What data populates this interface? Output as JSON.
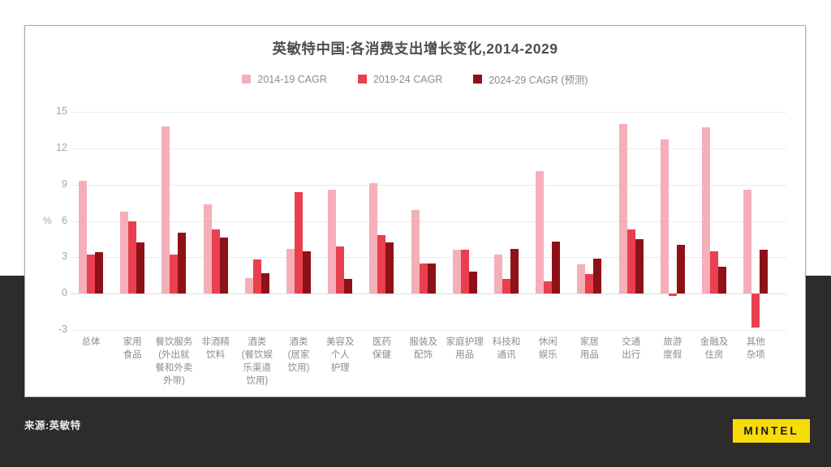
{
  "slide": {
    "source": "来源:英敏特",
    "logo_text": "MINTEL",
    "logo_color": "#f8db0b"
  },
  "legend": [
    {
      "label": "2014-19 CAGR",
      "color": "#f4afb9"
    },
    {
      "label": "2019-24 CAGR",
      "color": "#e8404e"
    },
    {
      "label": "2024-29 CAGR (预测)",
      "color": "#8e1117"
    }
  ],
  "chart_data": {
    "type": "bar",
    "title": "英敏特中国:各消费支出增长变化,2014-2029",
    "xlabel": "",
    "ylabel": "%",
    "ylim": [
      -3,
      15
    ],
    "yticks": [
      15,
      12,
      9,
      6,
      3,
      0,
      -3
    ],
    "grid": true,
    "legend_position": "top",
    "categories": [
      "总体",
      "家用\n食品",
      "餐饮服务\n(外出就\n餐和外卖\n外带)",
      "非酒精\n饮料",
      "酒类\n(餐饮娱\n乐渠道\n饮用)",
      "酒类\n(居家\n饮用)",
      "美容及\n个人\n护理",
      "医药\n保健",
      "服装及\n配饰",
      "家庭护理\n用品",
      "科技和\n通讯",
      "休闲\n娱乐",
      "家居\n用品",
      "交通\n出行",
      "旅游\n度假",
      "金融及\n住房",
      "其他\n杂项"
    ],
    "series": [
      {
        "name": "2014-19 CAGR",
        "color": "#f4afb9",
        "values": [
          9.3,
          6.8,
          13.8,
          7.4,
          1.3,
          3.7,
          8.6,
          9.1,
          6.9,
          3.6,
          3.2,
          10.1,
          2.4,
          14.0,
          12.7,
          13.7,
          8.6
        ]
      },
      {
        "name": "2019-24 CAGR",
        "color": "#e8404e",
        "values": [
          3.2,
          6.0,
          3.2,
          5.3,
          2.8,
          8.4,
          3.9,
          4.8,
          2.5,
          3.6,
          1.2,
          1.0,
          1.6,
          5.3,
          -0.2,
          3.5,
          -2.8
        ]
      },
      {
        "name": "2024-29 CAGR (预测)",
        "color": "#8e1117",
        "values": [
          3.4,
          4.2,
          5.0,
          4.6,
          1.7,
          3.5,
          1.2,
          4.2,
          2.5,
          1.8,
          3.7,
          4.3,
          2.9,
          4.5,
          4.0,
          2.2,
          3.6
        ]
      }
    ]
  }
}
